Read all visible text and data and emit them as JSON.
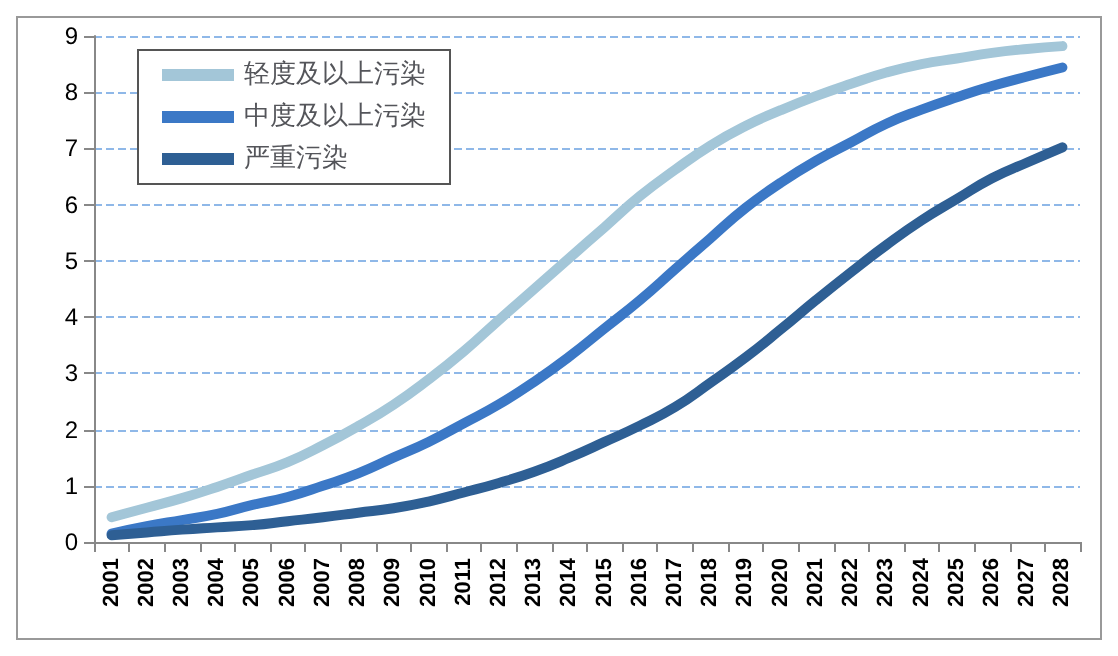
{
  "chart_data": {
    "type": "line",
    "categories": [
      "2001",
      "2002",
      "2003",
      "2004",
      "2005",
      "2006",
      "2007",
      "2008",
      "2009",
      "2010",
      "2011",
      "2012",
      "2013",
      "2014",
      "2015",
      "2016",
      "2017",
      "2018",
      "2019",
      "2020",
      "2021",
      "2022",
      "2023",
      "2024",
      "2025",
      "2026",
      "2027",
      "2028"
    ],
    "series": [
      {
        "name": "轻度及以上污染",
        "color": "#a3c6d8",
        "values": [
          0.44,
          0.61,
          0.78,
          0.98,
          1.2,
          1.42,
          1.72,
          2.06,
          2.44,
          2.89,
          3.39,
          3.95,
          4.5,
          5.05,
          5.6,
          6.15,
          6.62,
          7.05,
          7.4,
          7.68,
          7.93,
          8.15,
          8.35,
          8.5,
          8.6,
          8.7,
          8.77,
          8.82
        ]
      },
      {
        "name": "中度及以上污染",
        "color": "#3b78c6",
        "values": [
          0.15,
          0.28,
          0.39,
          0.5,
          0.66,
          0.8,
          1.0,
          1.22,
          1.5,
          1.78,
          2.11,
          2.45,
          2.85,
          3.3,
          3.8,
          4.3,
          4.85,
          5.4,
          5.94,
          6.39,
          6.78,
          7.11,
          7.44,
          7.69,
          7.91,
          8.11,
          8.28,
          8.44
        ]
      },
      {
        "name": "严重污染",
        "color": "#2e5f94",
        "values": [
          0.12,
          0.17,
          0.22,
          0.26,
          0.3,
          0.37,
          0.44,
          0.52,
          0.6,
          0.72,
          0.88,
          1.05,
          1.25,
          1.5,
          1.78,
          2.07,
          2.4,
          2.83,
          3.28,
          3.78,
          4.3,
          4.8,
          5.28,
          5.72,
          6.1,
          6.47,
          6.75,
          7.02
        ]
      }
    ],
    "ylim": [
      0,
      9
    ],
    "yticks": [
      0,
      1,
      2,
      3,
      4,
      5,
      6,
      7,
      8,
      9
    ],
    "grid": "y",
    "legend": "top left",
    "marker": "none",
    "line_style": "solid"
  }
}
